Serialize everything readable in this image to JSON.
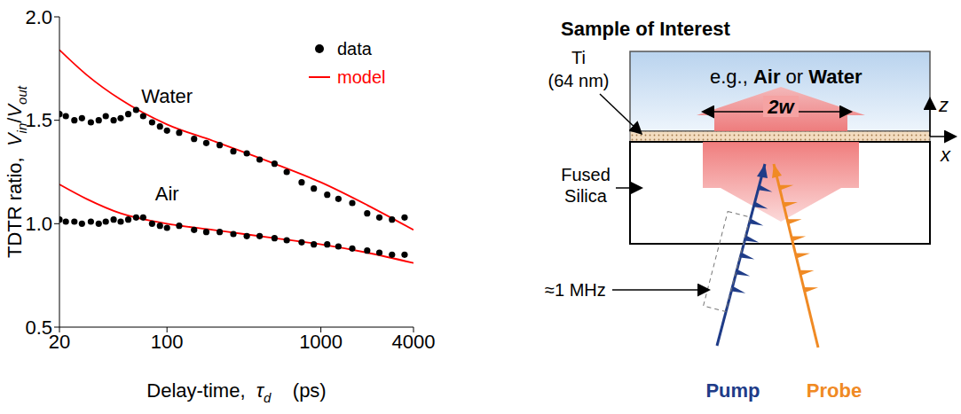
{
  "chart_data": {
    "type": "scatter",
    "x_label": [
      "Delay-time,  ",
      {
        "main": "τ",
        "sub": "d"
      },
      "    (ps)"
    ],
    "y_label": [
      "TDTR ratio,  ",
      {
        "main": "V",
        "sub": "in"
      },
      "/",
      {
        "main": "V",
        "sub": "out"
      }
    ],
    "log": "x",
    "xlim": [
      20,
      4000
    ],
    "xticks": [
      20,
      100,
      1000,
      4000
    ],
    "ylim": [
      0.5,
      2
    ],
    "yticks": [
      0.5,
      {
        "value": 1,
        "label": "1.0"
      },
      1.5,
      {
        "value": 2,
        "label": "2.0"
      }
    ],
    "grid": false,
    "legend": "upper right",
    "series": [
      {
        "name": "data",
        "type": "scatter",
        "color": "#000000",
        "marker": "circle",
        "curves": [
          {
            "label": "Water",
            "x": [
              20,
              22,
              25,
              28,
              32,
              36,
              40,
              45,
              50,
              56,
              63,
              70,
              80,
              90,
              100,
              120,
              150,
              180,
              220,
              270,
              330,
              400,
              500,
              600,
              750,
              900,
              1100,
              1300,
              1600,
              2000,
              2400,
              2900,
              3500
            ],
            "values": [
              1.53,
              1.52,
              1.5,
              1.51,
              1.49,
              1.5,
              1.52,
              1.5,
              1.51,
              1.53,
              1.55,
              1.52,
              1.49,
              1.47,
              1.45,
              1.44,
              1.41,
              1.39,
              1.38,
              1.35,
              1.34,
              1.31,
              1.29,
              1.25,
              1.2,
              1.17,
              1.14,
              1.12,
              1.1,
              1.05,
              1.03,
              1.02,
              1.03
            ]
          },
          {
            "label": "Air",
            "x": [
              20,
              22,
              25,
              28,
              32,
              36,
              40,
              45,
              50,
              56,
              63,
              70,
              80,
              90,
              100,
              120,
              150,
              180,
              220,
              270,
              330,
              400,
              500,
              600,
              750,
              900,
              1100,
              1300,
              1600,
              2000,
              2400,
              2900,
              3500
            ],
            "values": [
              1.02,
              1.01,
              1.01,
              1.0,
              1.01,
              1.0,
              1.01,
              1.02,
              1.01,
              1.02,
              1.03,
              1.03,
              1.0,
              0.99,
              0.98,
              0.99,
              0.97,
              0.96,
              0.96,
              0.95,
              0.94,
              0.94,
              0.93,
              0.92,
              0.91,
              0.9,
              0.9,
              0.89,
              0.88,
              0.87,
              0.86,
              0.85,
              0.85
            ]
          }
        ]
      },
      {
        "name": "model",
        "type": "line",
        "color": "#ff0000",
        "line_style": "solid",
        "curves": [
          {
            "label": "Water",
            "x": [
              20,
              30,
              50,
              100,
              200,
              500,
              1000,
              2000,
              4000
            ],
            "values": [
              1.84,
              1.72,
              1.6,
              1.48,
              1.4,
              1.29,
              1.2,
              1.09,
              0.97
            ]
          },
          {
            "label": "Air",
            "x": [
              20,
              30,
              50,
              100,
              200,
              500,
              1000,
              2000,
              4000
            ],
            "values": [
              1.19,
              1.12,
              1.05,
              1.0,
              0.97,
              0.93,
              0.9,
              0.86,
              0.81
            ]
          }
        ]
      }
    ]
  },
  "diagram": {
    "title": "Sample of Interest",
    "sample_text": [
      "e.g., ",
      "Air",
      " or ",
      "Water"
    ],
    "layer_label": [
      "Ti",
      "(64 nm)"
    ],
    "substrate_label": [
      "Fused",
      "Silica"
    ],
    "beam_width_label": "2w",
    "axes": [
      "z",
      "x"
    ],
    "modulation_label": "≈1 MHz",
    "beams": [
      {
        "label": "Pump",
        "color": "#1f3c88"
      },
      {
        "label": "Probe",
        "color": "#f08a24"
      }
    ]
  }
}
